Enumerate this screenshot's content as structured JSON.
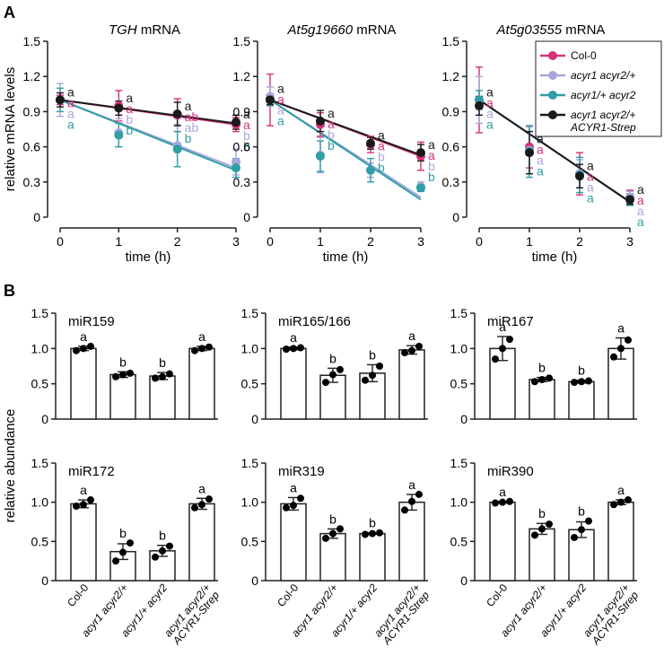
{
  "panel_labels": [
    "A",
    "B"
  ],
  "colors": {
    "col0": "#d6317a",
    "acyr1_acyr2_het": "#a9a6dc",
    "acyr1_het_acyr2": "#2f9ea5",
    "complemented": "#1a1a1a",
    "axis": "#222222"
  },
  "chart_data": [
    {
      "type": "line",
      "panel": "A",
      "title": "TGH mRNA",
      "title_italic": "TGH",
      "title_plain": " mRNA",
      "xlabel": "time (h)",
      "ylabel": "relative mRNA levels",
      "x": [
        0,
        1,
        2,
        3
      ],
      "xticks": [
        "0",
        "1",
        "2",
        "3"
      ],
      "ylim": [
        0,
        1.5
      ],
      "yticks": [
        "0",
        "0.3",
        "0.6",
        "0.9",
        "1.2",
        "1.5"
      ],
      "series": [
        {
          "name": "Col-0",
          "color": "#d6317a",
          "values": [
            1.0,
            0.95,
            0.87,
            0.79
          ],
          "err": [
            0.04,
            0.13,
            0.14,
            0.06
          ],
          "fit": [
            1.0,
            0.79
          ],
          "letters": [
            "a",
            "a",
            "ab",
            "a"
          ]
        },
        {
          "name": "acyr1 acyr2/+",
          "color": "#a9a6dc",
          "values": [
            1.0,
            0.72,
            0.61,
            0.47
          ],
          "err": [
            0.14,
            0.12,
            0.18,
            0.11
          ],
          "fit": [
            1.0,
            0.42
          ],
          "letters": [
            "a",
            "b",
            "ab",
            "b"
          ]
        },
        {
          "name": "acyr1/+ acyr2",
          "color": "#2f9ea5",
          "values": [
            1.0,
            0.7,
            0.58,
            0.42
          ],
          "err": [
            0.1,
            0.1,
            0.15,
            0.08
          ],
          "fit": [
            1.0,
            0.4
          ],
          "letters": [
            "a",
            "b",
            "b",
            "b"
          ]
        },
        {
          "name": "acyr1 acyr2/+ ACYR1-Strep",
          "color": "#1a1a1a",
          "values": [
            1.0,
            0.93,
            0.88,
            0.81
          ],
          "err": [
            0.06,
            0.06,
            0.1,
            0.06
          ],
          "fit": [
            1.0,
            0.8
          ],
          "letters": [
            "a",
            "a",
            "a",
            "a"
          ]
        }
      ]
    },
    {
      "type": "line",
      "panel": "A",
      "title": "At5g19660 mRNA",
      "title_italic": "At5g19660",
      "title_plain": " mRNA",
      "xlabel": "time (h)",
      "ylabel": "",
      "x": [
        0,
        1,
        2,
        3
      ],
      "xticks": [
        "0",
        "1",
        "2",
        "3"
      ],
      "ylim": [
        0,
        1.5
      ],
      "yticks": [
        "0",
        "0.3",
        "0.6",
        "0.9",
        "1.2",
        "1.5"
      ],
      "series": [
        {
          "name": "Col-0",
          "color": "#d6317a",
          "values": [
            1.0,
            0.79,
            0.62,
            0.52
          ],
          "err": [
            0.22,
            0.1,
            0.07,
            0.12
          ],
          "fit": [
            1.0,
            0.52
          ],
          "letters": [
            "a",
            "a",
            "a",
            "a"
          ]
        },
        {
          "name": "acyr1 acyr2/+",
          "color": "#a9a6dc",
          "values": [
            1.03,
            0.53,
            0.4,
            0.26
          ],
          "err": [
            0.08,
            0.15,
            0.06,
            0.04
          ],
          "fit": [
            1.0,
            0.17
          ],
          "letters": [
            "a",
            "b",
            "b",
            "b"
          ]
        },
        {
          "name": "acyr1/+ acyr2",
          "color": "#2f9ea5",
          "values": [
            1.0,
            0.52,
            0.4,
            0.25
          ],
          "err": [
            0.05,
            0.13,
            0.1,
            0.03
          ],
          "fit": [
            1.0,
            0.15
          ],
          "letters": [
            "a",
            "b",
            "b",
            "b"
          ]
        },
        {
          "name": "acyr1 acyr2/+ ACYR1-Strep",
          "color": "#1a1a1a",
          "values": [
            1.0,
            0.82,
            0.63,
            0.55
          ],
          "err": [
            0.04,
            0.09,
            0.05,
            0.07
          ],
          "fit": [
            1.0,
            0.53
          ],
          "letters": [
            "a",
            "a",
            "a",
            "a"
          ]
        }
      ]
    },
    {
      "type": "line",
      "panel": "A",
      "title": "At5g03555 mRNA",
      "title_italic": "At5g03555",
      "title_plain": " mRNA",
      "xlabel": "time (h)",
      "ylabel": "",
      "x": [
        0,
        1,
        2,
        3
      ],
      "xticks": [
        "0",
        "1",
        "2",
        "3"
      ],
      "ylim": [
        0,
        1.5
      ],
      "yticks": [
        "0",
        "0.3",
        "0.6",
        "0.9",
        "1.2",
        "1.5"
      ],
      "series": [
        {
          "name": "Col-0",
          "color": "#d6317a",
          "values": [
            1.0,
            0.6,
            0.37,
            0.17
          ],
          "err": [
            0.28,
            0.18,
            0.18,
            0.06
          ],
          "fit": [
            1.0,
            0.13
          ],
          "letters": [
            "a",
            "a",
            "a",
            "a"
          ]
        },
        {
          "name": "acyr1 acyr2/+",
          "color": "#a9a6dc",
          "values": [
            1.0,
            0.57,
            0.37,
            0.17
          ],
          "err": [
            0.2,
            0.2,
            0.12,
            0.05
          ],
          "fit": [
            1.0,
            0.13
          ],
          "letters": [
            "a",
            "a",
            "a",
            "a"
          ]
        },
        {
          "name": "acyr1/+ acyr2",
          "color": "#2f9ea5",
          "values": [
            1.0,
            0.56,
            0.36,
            0.15
          ],
          "err": [
            0.08,
            0.22,
            0.15,
            0.05
          ],
          "fit": [
            1.0,
            0.13
          ],
          "letters": [
            "a",
            "a",
            "a",
            "a"
          ]
        },
        {
          "name": "acyr1 acyr2/+ ACYR1-Strep",
          "color": "#1a1a1a",
          "values": [
            0.95,
            0.55,
            0.35,
            0.15
          ],
          "err": [
            0.08,
            0.18,
            0.1,
            0.04
          ],
          "fit": [
            1.0,
            0.13
          ],
          "letters": [
            "a",
            "a",
            "a",
            "a"
          ]
        }
      ]
    },
    {
      "type": "bar",
      "panel": "B",
      "title": "miR159",
      "categories": [
        "Col-0",
        "acyr1 acyr2/+",
        "acyr1/+ acyr2",
        "acyr1 acyr2/+ ACYR1-Strep"
      ],
      "values": [
        1.0,
        0.63,
        0.61,
        1.0
      ],
      "err": [
        0.03,
        0.04,
        0.05,
        0.03
      ],
      "points": [
        [
          0.97,
          1.0,
          1.03
        ],
        [
          0.6,
          0.63,
          0.65
        ],
        [
          0.58,
          0.6,
          0.64
        ],
        [
          0.97,
          1.0,
          1.02
        ]
      ],
      "letters": [
        "a",
        "b",
        "b",
        "a"
      ],
      "ylim": [
        0,
        1.5
      ],
      "yticks": [
        "0",
        "0.5",
        "1.0",
        "1.5"
      ],
      "ylabel": "relative abundance"
    },
    {
      "type": "bar",
      "panel": "B",
      "title": "miR165/166",
      "categories": [
        "Col-0",
        "acyr1 acyr2/+",
        "acyr1/+ acyr2",
        "acyr1 acyr2/+ ACYR1-Strep"
      ],
      "values": [
        1.0,
        0.62,
        0.65,
        0.98
      ],
      "err": [
        0.02,
        0.1,
        0.12,
        0.06
      ],
      "points": [
        [
          0.99,
          1.0,
          1.01
        ],
        [
          0.52,
          0.63,
          0.7
        ],
        [
          0.55,
          0.62,
          0.75
        ],
        [
          0.94,
          0.97,
          1.03
        ]
      ],
      "letters": [
        "a",
        "b",
        "b",
        "a"
      ],
      "ylim": [
        0,
        1.5
      ],
      "yticks": [
        "0",
        "0.5",
        "1.0",
        "1.5"
      ],
      "ylabel": ""
    },
    {
      "type": "bar",
      "panel": "B",
      "title": "miR167",
      "categories": [
        "Col-0",
        "acyr1 acyr2/+",
        "acyr1/+ acyr2",
        "acyr1 acyr2/+ ACYR1-Strep"
      ],
      "values": [
        1.0,
        0.56,
        0.53,
        1.0
      ],
      "err": [
        0.17,
        0.03,
        0.02,
        0.15
      ],
      "points": [
        [
          0.85,
          1.0,
          1.13
        ],
        [
          0.53,
          0.56,
          0.58
        ],
        [
          0.52,
          0.53,
          0.54
        ],
        [
          0.88,
          1.0,
          1.12
        ]
      ],
      "letters": [
        "a",
        "b",
        "b",
        "a"
      ],
      "ylim": [
        0,
        1.5
      ],
      "yticks": [
        "0",
        "0.5",
        "1.0",
        "1.5"
      ],
      "ylabel": ""
    },
    {
      "type": "bar",
      "panel": "B",
      "title": "miR172",
      "categories": [
        "Col-0",
        "acyr1 acyr2/+",
        "acyr1/+ acyr2",
        "acyr1 acyr2/+ ACYR1-Strep"
      ],
      "values": [
        0.98,
        0.37,
        0.38,
        0.98
      ],
      "err": [
        0.05,
        0.1,
        0.07,
        0.07
      ],
      "points": [
        [
          0.95,
          0.97,
          1.03
        ],
        [
          0.25,
          0.36,
          0.48
        ],
        [
          0.3,
          0.38,
          0.44
        ],
        [
          0.93,
          0.97,
          1.04
        ]
      ],
      "letters": [
        "a",
        "b",
        "b",
        "a"
      ],
      "ylim": [
        0,
        1.5
      ],
      "yticks": [
        "0",
        "0.5",
        "1.0",
        "1.5"
      ],
      "ylabel": ""
    },
    {
      "type": "bar",
      "panel": "B",
      "title": "miR319",
      "categories": [
        "Col-0",
        "acyr1 acyr2/+",
        "acyr1/+ acyr2",
        "acyr1 acyr2/+ ACYR1-Strep"
      ],
      "values": [
        0.98,
        0.6,
        0.6,
        1.0
      ],
      "err": [
        0.08,
        0.06,
        0.01,
        0.1
      ],
      "points": [
        [
          0.93,
          0.96,
          1.05
        ],
        [
          0.54,
          0.6,
          0.66
        ],
        [
          0.59,
          0.6,
          0.61
        ],
        [
          0.9,
          1.01,
          1.1
        ]
      ],
      "letters": [
        "a",
        "b",
        "b",
        "a"
      ],
      "ylim": [
        0,
        1.5
      ],
      "yticks": [
        "0",
        "0.5",
        "1.0",
        "1.5"
      ],
      "ylabel": ""
    },
    {
      "type": "bar",
      "panel": "B",
      "title": "miR390",
      "categories": [
        "Col-0",
        "acyr1 acyr2/+",
        "acyr1/+ acyr2",
        "acyr1 acyr2/+ ACYR1-Strep"
      ],
      "values": [
        1.0,
        0.66,
        0.65,
        1.0
      ],
      "err": [
        0.01,
        0.07,
        0.1,
        0.03
      ],
      "points": [
        [
          0.99,
          1.0,
          1.01
        ],
        [
          0.58,
          0.66,
          0.72
        ],
        [
          0.55,
          0.65,
          0.76
        ],
        [
          0.97,
          1.0,
          1.03
        ]
      ],
      "letters": [
        "a",
        "b",
        "b",
        "a"
      ],
      "ylim": [
        0,
        1.5
      ],
      "yticks": [
        "0",
        "0.5",
        "1.0",
        "1.5"
      ],
      "ylabel": ""
    }
  ]
}
